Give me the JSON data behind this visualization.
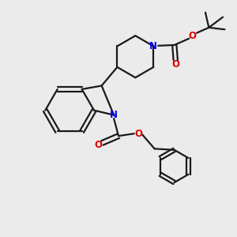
{
  "bg_color": "#ebebeb",
  "bond_color": "#1a1a1a",
  "N_color": "#0000ee",
  "O_color": "#dd0000",
  "line_width": 1.6,
  "figsize": [
    3.0,
    3.0
  ],
  "dpi": 100,
  "xlim": [
    0,
    10
  ],
  "ylim": [
    0,
    10
  ]
}
